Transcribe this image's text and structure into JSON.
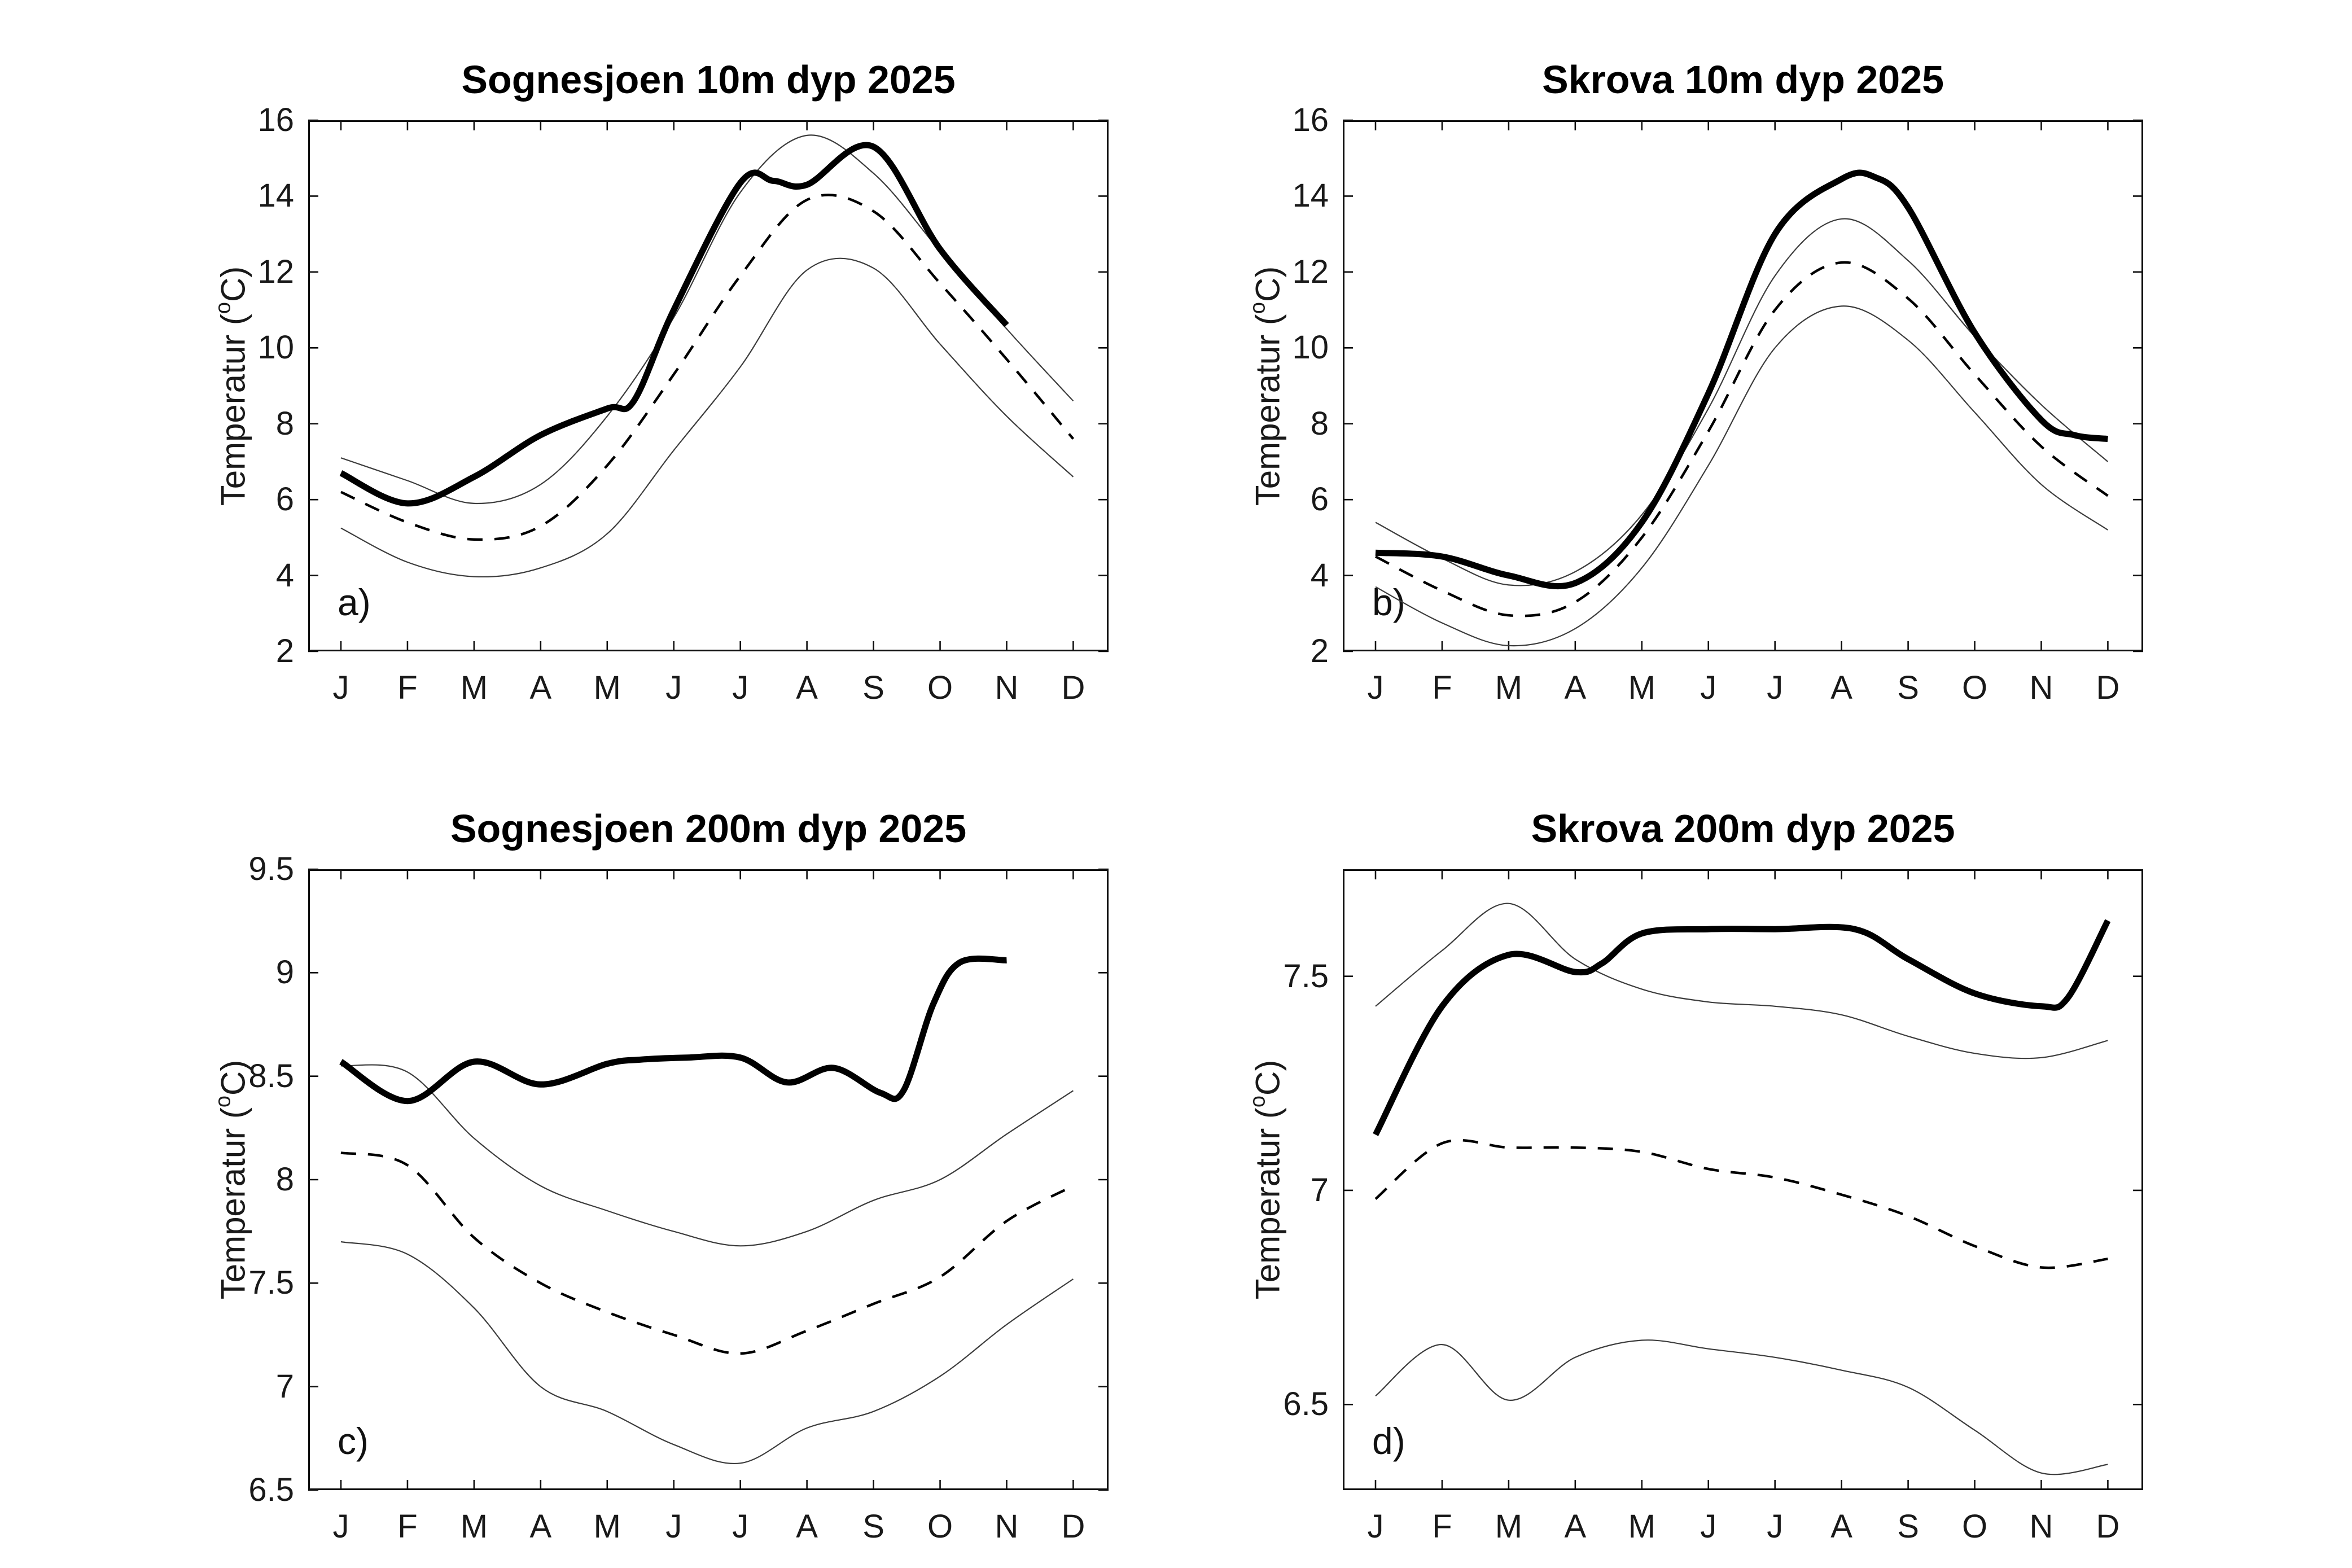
{
  "figure": {
    "background": "#ffffff",
    "ylabel_pre": "Temperatur (",
    "ylabel_sup": "o",
    "ylabel_post": "C)",
    "months": [
      "J",
      "F",
      "M",
      "A",
      "M",
      "J",
      "J",
      "A",
      "S",
      "O",
      "N",
      "D"
    ],
    "line_colors": {
      "bold": "#000000",
      "dashed": "#000000",
      "thin": "#3d3d3d",
      "axis": "#0f0f0f"
    }
  },
  "chart_data": [
    {
      "id": "a",
      "type": "line",
      "title": "Sognesjoen 10m dyp 2025",
      "panel_label": "a)",
      "xlabel": "",
      "ylabel": "Temperatur (°C)",
      "categories": [
        "J",
        "F",
        "M",
        "A",
        "M",
        "J",
        "J",
        "A",
        "S",
        "O",
        "N",
        "D"
      ],
      "ylim": [
        2,
        16
      ],
      "grid": false,
      "legend": "none",
      "yticks": [
        {
          "v": 2,
          "label": "2"
        },
        {
          "v": 4,
          "label": "4"
        },
        {
          "v": 6,
          "label": "6"
        },
        {
          "v": 8,
          "label": "8"
        },
        {
          "v": 10,
          "label": "10"
        },
        {
          "v": 12,
          "label": "12"
        },
        {
          "v": 14,
          "label": "14"
        },
        {
          "v": 16,
          "label": "16"
        }
      ],
      "series": [
        {
          "name": "upper-thin",
          "style": "thin",
          "x": [
            0,
            1,
            2,
            3,
            4,
            5,
            6,
            7,
            8,
            9,
            10,
            11
          ],
          "values": [
            7.1,
            6.5,
            5.9,
            6.4,
            8.2,
            10.8,
            14.1,
            15.6,
            14.6,
            12.55,
            10.5,
            8.6
          ]
        },
        {
          "name": "lower-thin",
          "style": "thin",
          "x": [
            0,
            1,
            2,
            3,
            4,
            5,
            6,
            7,
            8,
            9,
            10,
            11
          ],
          "values": [
            5.25,
            4.35,
            3.97,
            4.2,
            5.1,
            7.3,
            9.5,
            12.05,
            12.1,
            10.1,
            8.2,
            6.6
          ]
        },
        {
          "name": "mean-dashed",
          "style": "dashed",
          "x": [
            0,
            1,
            2,
            3,
            4,
            5,
            6,
            7,
            8,
            9,
            10,
            11
          ],
          "values": [
            6.2,
            5.4,
            4.95,
            5.3,
            6.9,
            9.3,
            11.9,
            13.9,
            13.6,
            11.7,
            9.7,
            7.6
          ]
        },
        {
          "name": "2025-bold",
          "style": "bold",
          "x": [
            0,
            1,
            2,
            3,
            4,
            4.4,
            5,
            6,
            6.5,
            7,
            8,
            9,
            10
          ],
          "values": [
            6.7,
            5.9,
            6.6,
            7.7,
            8.4,
            8.6,
            11.0,
            14.35,
            14.4,
            14.3,
            15.3,
            12.6,
            10.6
          ]
        }
      ]
    },
    {
      "id": "b",
      "type": "line",
      "title": "Skrova 10m dyp 2025",
      "panel_label": "b)",
      "xlabel": "",
      "ylabel": "Temperatur (°C)",
      "categories": [
        "J",
        "F",
        "M",
        "A",
        "M",
        "J",
        "J",
        "A",
        "S",
        "O",
        "N",
        "D"
      ],
      "ylim": [
        2,
        16
      ],
      "grid": false,
      "legend": "none",
      "yticks": [
        {
          "v": 2,
          "label": "2"
        },
        {
          "v": 4,
          "label": "4"
        },
        {
          "v": 6,
          "label": "6"
        },
        {
          "v": 8,
          "label": "8"
        },
        {
          "v": 10,
          "label": "10"
        },
        {
          "v": 12,
          "label": "12"
        },
        {
          "v": 14,
          "label": "14"
        },
        {
          "v": 16,
          "label": "16"
        }
      ],
      "series": [
        {
          "name": "upper-thin",
          "style": "thin",
          "x": [
            0,
            1,
            2,
            3,
            4,
            5,
            6,
            7,
            8,
            9,
            10,
            11
          ],
          "values": [
            5.4,
            4.45,
            3.75,
            4.1,
            5.6,
            8.4,
            11.9,
            13.4,
            12.3,
            10.3,
            8.5,
            7.0
          ]
        },
        {
          "name": "lower-thin",
          "style": "thin",
          "x": [
            0,
            1,
            2,
            3,
            4,
            5,
            6,
            7,
            8,
            9,
            10,
            11
          ],
          "values": [
            3.7,
            2.75,
            2.15,
            2.6,
            4.2,
            6.9,
            10.0,
            11.1,
            10.2,
            8.3,
            6.4,
            5.2
          ]
        },
        {
          "name": "mean-dashed",
          "style": "dashed",
          "x": [
            0,
            1,
            2,
            3,
            4,
            5,
            6,
            7,
            8,
            9,
            10,
            11
          ],
          "values": [
            4.5,
            3.6,
            2.95,
            3.3,
            5.0,
            7.8,
            11.0,
            12.25,
            11.3,
            9.3,
            7.4,
            6.1
          ]
        },
        {
          "name": "2025-bold",
          "style": "bold",
          "x": [
            0,
            1,
            2,
            3,
            4,
            5,
            6,
            7,
            7.5,
            8,
            9,
            10,
            10.5,
            11
          ],
          "values": [
            4.6,
            4.5,
            4.0,
            3.8,
            5.4,
            8.8,
            13.0,
            14.45,
            14.5,
            13.7,
            10.4,
            8.1,
            7.7,
            7.6
          ]
        }
      ]
    },
    {
      "id": "c",
      "type": "line",
      "title": "Sognesjoen 200m dyp 2025",
      "panel_label": "c)",
      "xlabel": "",
      "ylabel": "Temperatur (°C)",
      "categories": [
        "J",
        "F",
        "M",
        "A",
        "M",
        "J",
        "J",
        "A",
        "S",
        "O",
        "N",
        "D"
      ],
      "ylim": [
        6.5,
        9.5
      ],
      "grid": false,
      "legend": "none",
      "yticks": [
        {
          "v": 6.5,
          "label": "6.5"
        },
        {
          "v": 7,
          "label": "7"
        },
        {
          "v": 7.5,
          "label": "7.5"
        },
        {
          "v": 8,
          "label": "8"
        },
        {
          "v": 8.5,
          "label": "8.5"
        },
        {
          "v": 9,
          "label": "9"
        },
        {
          "v": 9.5,
          "label": "9.5"
        }
      ],
      "series": [
        {
          "name": "upper-thin",
          "style": "thin",
          "x": [
            0,
            1,
            2,
            3,
            4,
            5,
            6,
            7,
            8,
            9,
            10,
            11
          ],
          "values": [
            8.55,
            8.52,
            8.2,
            7.97,
            7.85,
            7.75,
            7.68,
            7.75,
            7.9,
            8.0,
            8.22,
            8.43
          ]
        },
        {
          "name": "lower-thin",
          "style": "thin",
          "x": [
            0,
            1,
            2,
            3,
            4,
            5,
            6,
            7,
            8,
            9,
            10,
            11
          ],
          "values": [
            7.7,
            7.64,
            7.38,
            7.0,
            6.88,
            6.72,
            6.63,
            6.8,
            6.88,
            7.05,
            7.3,
            7.52
          ]
        },
        {
          "name": "mean-dashed",
          "style": "dashed",
          "x": [
            0,
            1,
            2,
            3,
            4,
            5,
            6,
            7,
            8,
            9,
            10,
            11
          ],
          "values": [
            8.13,
            8.07,
            7.72,
            7.5,
            7.36,
            7.25,
            7.16,
            7.27,
            7.4,
            7.53,
            7.8,
            7.97
          ]
        },
        {
          "name": "2025-bold",
          "style": "bold",
          "x": [
            0,
            1,
            2,
            3,
            4,
            4.5,
            5.2,
            6,
            6.7,
            7.4,
            8.1,
            8.45,
            8.9,
            9.3,
            10
          ],
          "values": [
            8.57,
            8.38,
            8.57,
            8.46,
            8.56,
            8.58,
            8.59,
            8.59,
            8.47,
            8.54,
            8.42,
            8.43,
            8.85,
            9.05,
            9.06
          ]
        }
      ]
    },
    {
      "id": "d",
      "type": "line",
      "title": "Skrova 200m dyp 2025",
      "panel_label": "d)",
      "xlabel": "",
      "ylabel": "Temperatur (°C)",
      "categories": [
        "J",
        "F",
        "M",
        "A",
        "M",
        "J",
        "J",
        "A",
        "S",
        "O",
        "N",
        "D"
      ],
      "ylim": [
        6.3,
        7.75
      ],
      "grid": false,
      "legend": "none",
      "yticks": [
        {
          "v": 6.5,
          "label": "6.5"
        },
        {
          "v": 7,
          "label": "7"
        },
        {
          "v": 7.5,
          "label": "7.5"
        }
      ],
      "series": [
        {
          "name": "upper-thin",
          "style": "thin",
          "x": [
            0,
            1,
            2,
            3,
            4,
            5,
            6,
            7,
            8,
            9,
            10,
            11
          ],
          "values": [
            7.43,
            7.56,
            7.67,
            7.54,
            7.47,
            7.44,
            7.43,
            7.41,
            7.36,
            7.32,
            7.31,
            7.35
          ]
        },
        {
          "name": "lower-thin",
          "style": "thin",
          "x": [
            0,
            1,
            2,
            3,
            4,
            5,
            6,
            7,
            8,
            9,
            10,
            11
          ],
          "values": [
            6.52,
            6.64,
            6.51,
            6.61,
            6.65,
            6.63,
            6.61,
            6.58,
            6.54,
            6.44,
            6.34,
            6.36
          ]
        },
        {
          "name": "mean-dashed",
          "style": "dashed",
          "x": [
            0,
            1,
            2,
            3,
            4,
            5,
            6,
            7,
            8,
            9,
            10,
            11
          ],
          "values": [
            6.98,
            7.11,
            7.1,
            7.1,
            7.09,
            7.05,
            7.03,
            6.99,
            6.94,
            6.87,
            6.82,
            6.84
          ]
        },
        {
          "name": "2025-bold",
          "style": "bold",
          "x": [
            0,
            1,
            2,
            3,
            3.4,
            4,
            5,
            6,
            7.2,
            8,
            9,
            10,
            10.4,
            11
          ],
          "values": [
            7.13,
            7.43,
            7.55,
            7.51,
            7.53,
            7.6,
            7.61,
            7.61,
            7.61,
            7.54,
            7.46,
            7.43,
            7.45,
            7.63
          ]
        }
      ]
    }
  ]
}
